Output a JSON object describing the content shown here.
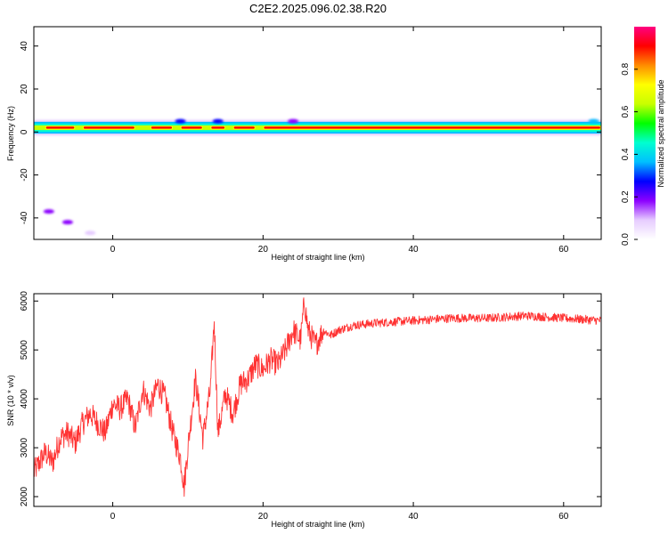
{
  "title": "C2E2.2025.096.02.38.R20",
  "chart_data": [
    {
      "type": "heatmap",
      "xlabel": "Height of straight line (km)",
      "ylabel": "Frequency (Hz)",
      "xlim": [
        -10.5,
        65
      ],
      "ylim": [
        -50,
        49
      ],
      "xticks": [
        0,
        20,
        40,
        60
      ],
      "yticks": [
        -40,
        -20,
        0,
        20,
        40
      ],
      "ytick_labels": [
        "-40",
        "-20",
        "0",
        "20",
        "40"
      ],
      "colorbar": {
        "label": "Normalized spectral amplitude",
        "range": [
          0,
          1
        ],
        "ticks": [
          "0.0",
          "0.2",
          "0.4",
          "0.6",
          "0.8"
        ],
        "tick_values": [
          0,
          0.2,
          0.4,
          0.6,
          0.8
        ],
        "colors": [
          "#ffffff",
          "#e6ccff",
          "#8c00ff",
          "#0000ff",
          "#00bfff",
          "#00ffd0",
          "#00ff00",
          "#c8ff00",
          "#ffff00",
          "#ff8c00",
          "#ff0000",
          "#ff0080"
        ]
      },
      "signal": {
        "center_frequency_hz": 2,
        "band_half_width_hz": 1.5,
        "peak_segments_km": [
          [
            -9,
            -5
          ],
          [
            -4,
            3
          ],
          [
            5,
            8
          ],
          [
            9,
            12
          ],
          [
            13,
            15
          ],
          [
            16,
            19
          ],
          [
            20,
            65
          ]
        ],
        "scatter_patches": [
          {
            "x": -8.5,
            "y": -37,
            "amp": 0.15
          },
          {
            "x": -6,
            "y": -42,
            "amp": 0.2
          },
          {
            "x": -3,
            "y": -47,
            "amp": 0.1
          },
          {
            "x": 9,
            "y": 5,
            "amp": 0.3
          },
          {
            "x": 14,
            "y": 5,
            "amp": 0.3
          },
          {
            "x": 24,
            "y": 5,
            "amp": 0.2
          },
          {
            "x": 64,
            "y": 5,
            "amp": 0.4
          }
        ]
      }
    },
    {
      "type": "line",
      "xlabel": "Height of straight line (km)",
      "ylabel": "SNR (10 * v/v)",
      "xlim": [
        -10.5,
        65
      ],
      "ylim": [
        1800,
        6150
      ],
      "xticks": [
        0,
        20,
        40,
        60
      ],
      "yticks": [
        2000,
        3000,
        4000,
        5000,
        6000
      ],
      "color": "#ff3333",
      "x": [
        -10.5,
        -9,
        -8,
        -7,
        -6,
        -5,
        -4,
        -3,
        -2,
        -1,
        0,
        1,
        2,
        3,
        4,
        5,
        6,
        7,
        8,
        9,
        9.5,
        10,
        11,
        12,
        13,
        13.5,
        14,
        15,
        16,
        17,
        18,
        19,
        20,
        21,
        22,
        23,
        24,
        25,
        25.5,
        26,
        27,
        28,
        29,
        30,
        32,
        35,
        40,
        45,
        50,
        55,
        60,
        65
      ],
      "y": [
        2500,
        2900,
        2700,
        3200,
        3300,
        3100,
        3500,
        3700,
        3500,
        3300,
        3900,
        3800,
        4000,
        3400,
        4200,
        3800,
        4300,
        4000,
        3300,
        2800,
        2200,
        3000,
        4400,
        3200,
        4200,
        5600,
        3300,
        4100,
        3700,
        4300,
        4400,
        4700,
        4600,
        4800,
        4700,
        5000,
        5400,
        5200,
        6000,
        5400,
        5100,
        5400,
        5300,
        5400,
        5500,
        5550,
        5600,
        5650,
        5650,
        5700,
        5650,
        5600
      ]
    }
  ]
}
